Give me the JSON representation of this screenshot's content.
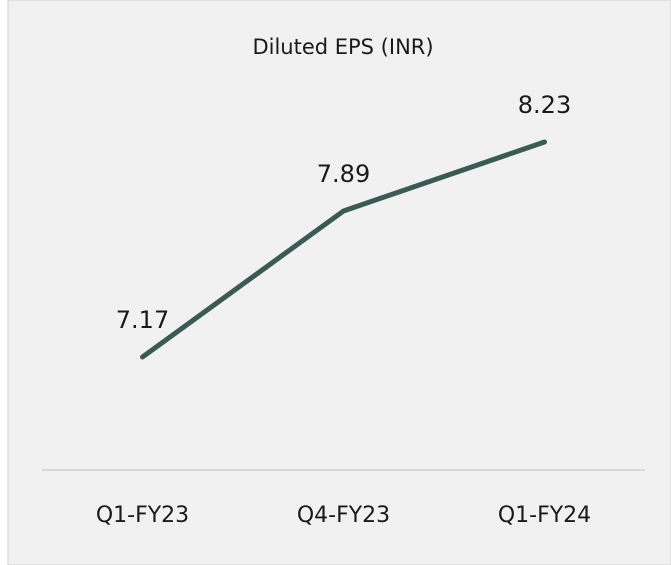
{
  "chart_data": {
    "type": "line",
    "title": "Diluted EPS (INR)",
    "categories": [
      "Q1-FY23",
      "Q4-FY23",
      "Q1-FY24"
    ],
    "series": [
      {
        "name": "Diluted EPS",
        "color": "#3b5a54",
        "values": [
          7.17,
          7.89,
          8.23
        ]
      }
    ]
  }
}
